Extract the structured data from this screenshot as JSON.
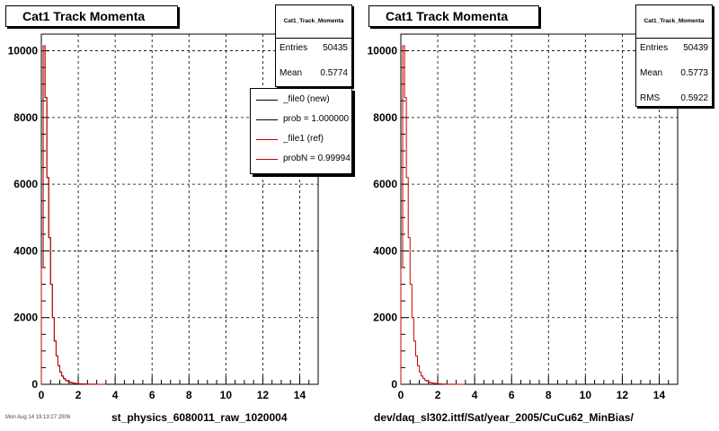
{
  "chart_data": [
    {
      "type": "histogram",
      "title": "Cat1 Track Momenta",
      "xlabel": "st_physics_6080011_raw_1020004",
      "ylabel": "",
      "xlim": [
        0,
        15
      ],
      "ylim": [
        0,
        10500
      ],
      "grid": true,
      "x_ticks": [
        0,
        2,
        4,
        6,
        8,
        10,
        12,
        14
      ],
      "y_ticks": [
        0,
        2000,
        4000,
        6000,
        8000,
        10000
      ],
      "bin_width": 0.1,
      "stats": {
        "title": "Cat1_Track_Momenta",
        "rows": [
          {
            "label": "Entries",
            "value": "50435"
          },
          {
            "label": "Mean",
            "value": "0.5774"
          }
        ]
      },
      "legend": {
        "placement": "top-right",
        "entries": [
          {
            "label": "_file0 (new)",
            "color": "#000000"
          },
          {
            "label": "prob = 1.000000",
            "color": "#000000"
          },
          {
            "label": "_file1 (ref)",
            "color": "#cc0000"
          },
          {
            "label": "probN = 0.99994",
            "color": "#cc0000"
          }
        ]
      },
      "series": [
        {
          "name": "_file0 (new)",
          "color": "#000000",
          "values": [
            3500,
            10150,
            8600,
            6200,
            4400,
            3000,
            2000,
            1300,
            850,
            560,
            370,
            250,
            170,
            120,
            90,
            65,
            50,
            38,
            28,
            22,
            17,
            13,
            10,
            8,
            6,
            5,
            4,
            3,
            2,
            2,
            1,
            1,
            1,
            1,
            0
          ]
        },
        {
          "name": "_file1 (ref)",
          "color": "#cc0000",
          "values": [
            3500,
            10150,
            8600,
            6200,
            4400,
            3000,
            2000,
            1300,
            850,
            560,
            370,
            250,
            170,
            120,
            90,
            65,
            50,
            38,
            28,
            22,
            17,
            13,
            10,
            8,
            6,
            5,
            4,
            3,
            2,
            2,
            1,
            1,
            1,
            1,
            0
          ]
        }
      ]
    },
    {
      "type": "histogram",
      "title": "Cat1 Track Momenta",
      "xlabel": "dev/daq_sl302.ittf/Sat/year_2005/CuCu62_MinBias/",
      "ylabel": "",
      "xlim": [
        0,
        15
      ],
      "ylim": [
        0,
        10500
      ],
      "grid": true,
      "x_ticks": [
        0,
        2,
        4,
        6,
        8,
        10,
        12,
        14
      ],
      "y_ticks": [
        0,
        2000,
        4000,
        6000,
        8000,
        10000
      ],
      "bin_width": 0.1,
      "stats": {
        "title": "Cat1_Track_Momenta",
        "rows": [
          {
            "label": "Entries",
            "value": "50439"
          },
          {
            "label": "Mean",
            "value": "0.5773"
          },
          {
            "label": "RMS",
            "value": "0.5922"
          }
        ]
      },
      "series": [
        {
          "name": "",
          "color": "#cc0000",
          "values": [
            3500,
            10150,
            8600,
            6200,
            4400,
            3000,
            2000,
            1300,
            850,
            560,
            370,
            250,
            170,
            120,
            90,
            65,
            50,
            38,
            28,
            22,
            17,
            13,
            10,
            8,
            6,
            5,
            4,
            3,
            2,
            2,
            1,
            1,
            1,
            1,
            0
          ]
        }
      ]
    }
  ],
  "footer": "Mon Aug 14 19:13:27 2006"
}
